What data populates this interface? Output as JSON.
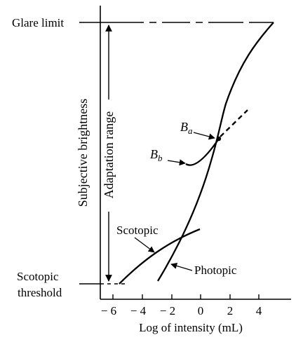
{
  "labels": {
    "glare_limit": "Glare limit",
    "scotopic_threshold_line1": "Scotopic",
    "scotopic_threshold_line2": "threshold",
    "y_axis": "Subjective brightness",
    "adaptation_range": "Adaptation range",
    "x_axis": "Log of intensity (mL)",
    "scotopic_curve": "Scotopic",
    "photopic_curve": "Photopic",
    "ba_base": "B",
    "ba_sub": "a",
    "bb_base": "B",
    "bb_sub": "b"
  },
  "x_ticks": [
    "− 6",
    "− 4",
    "− 2",
    "0",
    "2",
    "4"
  ]
}
